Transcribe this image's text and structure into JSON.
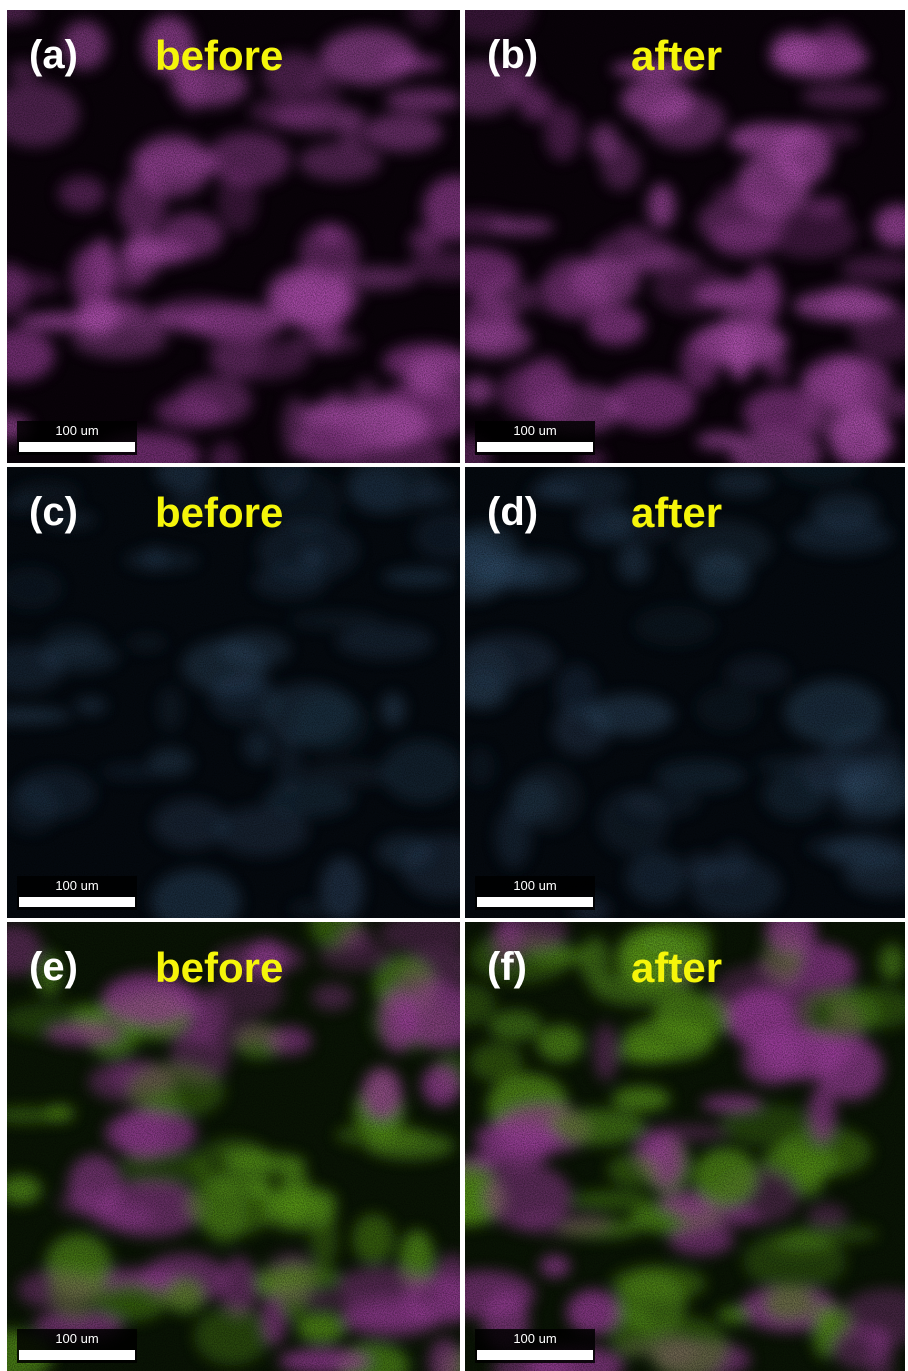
{
  "panels": [
    {
      "label": "(a)",
      "caption": "before",
      "scale_bar": "100 um"
    },
    {
      "label": "(b)",
      "caption": "after",
      "scale_bar": "100 um"
    },
    {
      "label": "(c)",
      "caption": "before",
      "scale_bar": "100 um"
    },
    {
      "label": "(d)",
      "caption": "after",
      "scale_bar": "100 um"
    },
    {
      "label": "(e)",
      "caption": "before",
      "scale_bar": "100 um"
    },
    {
      "label": "(f)",
      "caption": "after",
      "scale_bar": "100 um"
    }
  ]
}
